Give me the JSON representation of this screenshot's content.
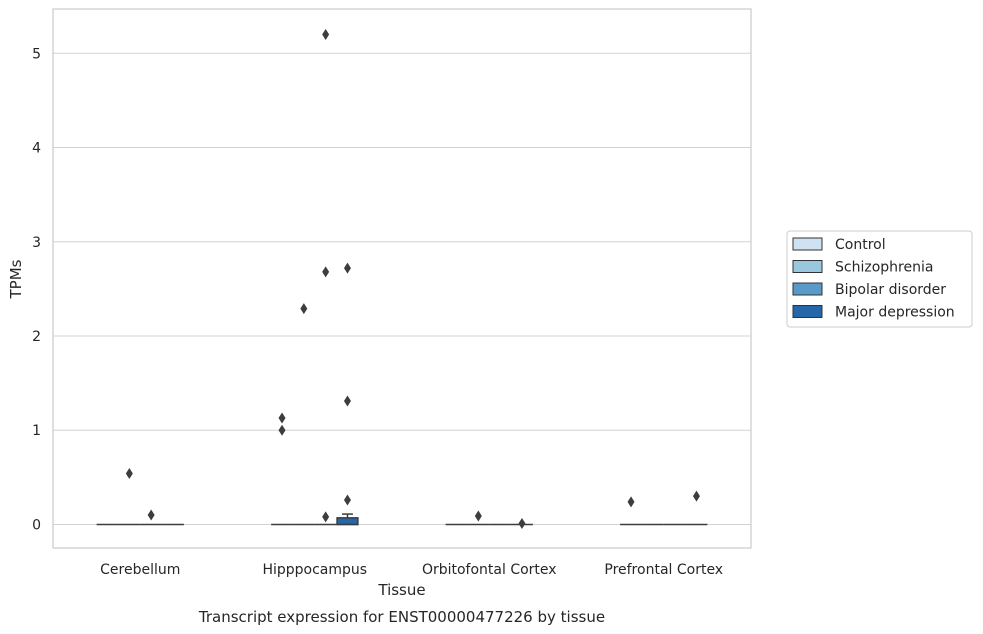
{
  "chart_data": {
    "type": "box",
    "xlabel": "Tissue",
    "ylabel": "TPMs",
    "caption": "Transcript expression for ENST00000477226 by tissue",
    "ylim": [
      -0.25,
      5.47
    ],
    "yticks": [
      0,
      1,
      2,
      3,
      4,
      5
    ],
    "grid": "horizontal",
    "legend_position": "right",
    "categories": [
      "Cerebellum",
      "Hipppocampus",
      "Orbitofontal Cortex",
      "Prefrontal Cortex"
    ],
    "series": [
      {
        "name": "Control",
        "color": "#d0e2f2"
      },
      {
        "name": "Schizophrenia",
        "color": "#9ac7e0"
      },
      {
        "name": "Bipolar disorder",
        "color": "#5a9ac8"
      },
      {
        "name": "Major depression",
        "color": "#2567a8"
      }
    ],
    "boxes": [
      {
        "category": 0,
        "series": 0,
        "q1": 0,
        "median": 0,
        "q3": 0,
        "whisker_low": 0,
        "whisker_high": 0,
        "outliers": []
      },
      {
        "category": 0,
        "series": 1,
        "q1": 0,
        "median": 0,
        "q3": 0,
        "whisker_low": 0,
        "whisker_high": 0,
        "outliers": [
          0.54
        ]
      },
      {
        "category": 0,
        "series": 2,
        "q1": 0,
        "median": 0,
        "q3": 0,
        "whisker_low": 0,
        "whisker_high": 0,
        "outliers": [
          0.1
        ]
      },
      {
        "category": 0,
        "series": 3,
        "q1": 0,
        "median": 0,
        "q3": 0,
        "whisker_low": 0,
        "whisker_high": 0,
        "outliers": []
      },
      {
        "category": 1,
        "series": 0,
        "q1": 0,
        "median": 0,
        "q3": 0,
        "whisker_low": 0,
        "whisker_high": 0,
        "outliers": [
          1.13,
          1.0
        ]
      },
      {
        "category": 1,
        "series": 1,
        "q1": 0,
        "median": 0,
        "q3": 0,
        "whisker_low": 0,
        "whisker_high": 0,
        "outliers": [
          2.29
        ]
      },
      {
        "category": 1,
        "series": 2,
        "q1": 0,
        "median": 0,
        "q3": 0,
        "whisker_low": 0,
        "whisker_high": 0,
        "outliers": [
          5.2,
          2.68,
          0.08
        ]
      },
      {
        "category": 1,
        "series": 3,
        "q1": 0,
        "median": 0,
        "q3": 0.07,
        "whisker_low": 0,
        "whisker_high": 0.11,
        "outliers": [
          2.72,
          1.31,
          0.26
        ]
      },
      {
        "category": 2,
        "series": 0,
        "q1": 0,
        "median": 0,
        "q3": 0,
        "whisker_low": 0,
        "whisker_high": 0,
        "outliers": []
      },
      {
        "category": 2,
        "series": 1,
        "q1": 0,
        "median": 0,
        "q3": 0,
        "whisker_low": 0,
        "whisker_high": 0,
        "outliers": [
          0.09
        ]
      },
      {
        "category": 2,
        "series": 2,
        "q1": 0,
        "median": 0,
        "q3": 0,
        "whisker_low": 0,
        "whisker_high": 0,
        "outliers": []
      },
      {
        "category": 2,
        "series": 3,
        "q1": 0,
        "median": 0,
        "q3": 0,
        "whisker_low": 0,
        "whisker_high": 0,
        "outliers": [
          0.01
        ]
      },
      {
        "category": 3,
        "series": 0,
        "q1": 0,
        "median": 0,
        "q3": 0,
        "whisker_low": 0,
        "whisker_high": 0,
        "outliers": [
          0.24
        ]
      },
      {
        "category": 3,
        "series": 1,
        "q1": 0,
        "median": 0,
        "q3": 0,
        "whisker_low": 0,
        "whisker_high": 0,
        "outliers": []
      },
      {
        "category": 3,
        "series": 2,
        "q1": 0,
        "median": 0,
        "q3": 0,
        "whisker_low": 0,
        "whisker_high": 0,
        "outliers": []
      },
      {
        "category": 3,
        "series": 3,
        "q1": 0,
        "median": 0,
        "q3": 0,
        "whisker_low": 0,
        "whisker_high": 0,
        "outliers": [
          0.3
        ]
      }
    ]
  }
}
